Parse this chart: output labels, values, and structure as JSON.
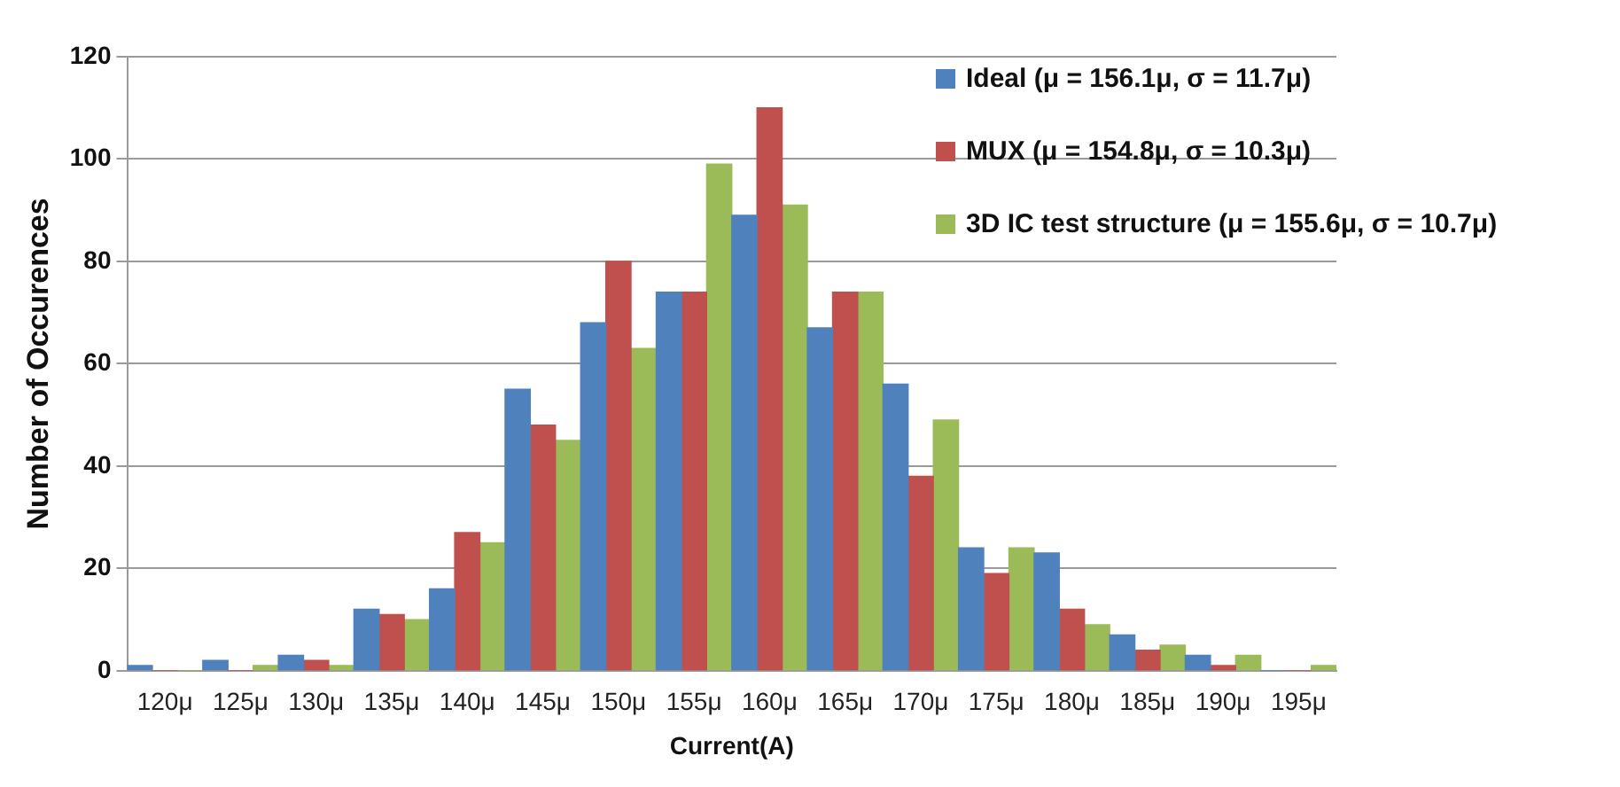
{
  "chart_data": {
    "type": "bar",
    "xlabel": "Current(A)",
    "ylabel": "Number of Occurences",
    "categories": [
      "120μ",
      "125μ",
      "130μ",
      "135μ",
      "140μ",
      "145μ",
      "150μ",
      "155μ",
      "160μ",
      "165μ",
      "170μ",
      "175μ",
      "180μ",
      "185μ",
      "190μ",
      "195μ"
    ],
    "series": [
      {
        "name": "Ideal (μ = 156.1μ, σ = 11.7μ)",
        "color": "#4f81bd",
        "values": [
          1,
          2,
          3,
          12,
          16,
          55,
          68,
          74,
          89,
          67,
          56,
          24,
          23,
          7,
          3,
          0
        ]
      },
      {
        "name": "MUX (μ = 154.8μ, σ = 10.3μ)",
        "color": "#c0504d",
        "values": [
          0,
          0,
          2,
          11,
          27,
          48,
          80,
          74,
          110,
          74,
          38,
          19,
          12,
          4,
          1,
          0
        ]
      },
      {
        "name": "3D IC test structure (μ = 155.6μ, σ = 10.7μ)",
        "color": "#9bbb59",
        "values": [
          0,
          1,
          1,
          10,
          25,
          45,
          63,
          99,
          91,
          74,
          49,
          24,
          9,
          5,
          3,
          1
        ]
      }
    ],
    "ylim": [
      0,
      120
    ],
    "yticks": [
      0,
      20,
      40,
      60,
      80,
      100,
      120
    ],
    "grid": "y",
    "legend": "top right"
  }
}
